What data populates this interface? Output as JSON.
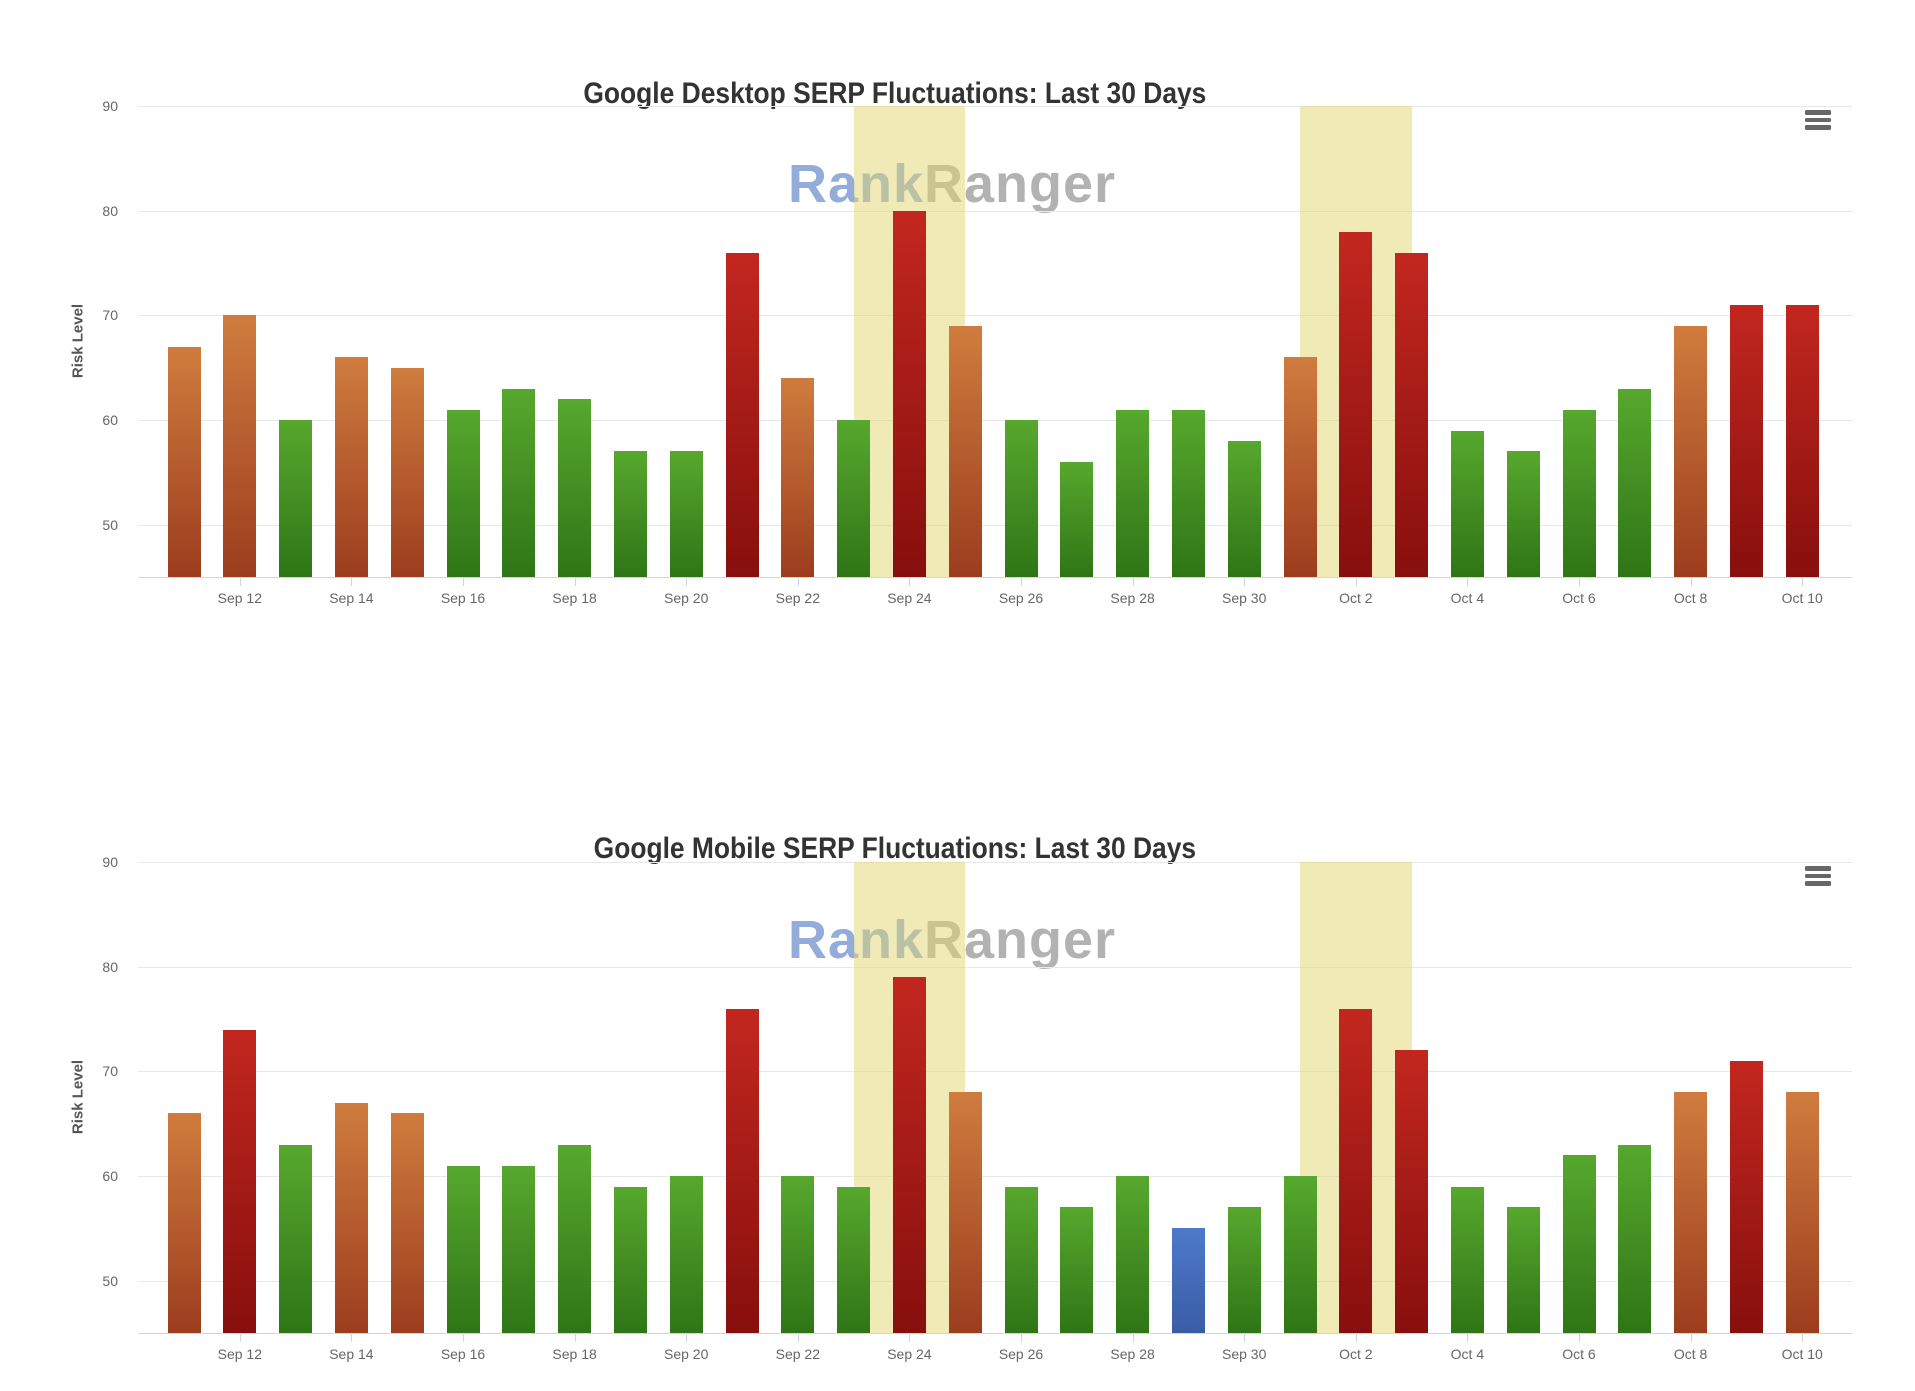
{
  "watermark": {
    "part1": "Rank",
    "part2": "Ranger"
  },
  "icons": {
    "chart_context_menu": "hamburger-icon"
  },
  "palette": {
    "low_green_top": "#57a82e",
    "low_green_bottom": "#2f7516",
    "moderate_orange_top": "#d07c3e",
    "moderate_orange_bottom": "#9c3d1e",
    "high_red_top": "#c2271f",
    "high_red_bottom": "#870f0d",
    "special_blue_top": "#4e79ca",
    "special_blue_bottom": "#3a5da6",
    "highlight_band": "#f0eab6",
    "gridline": "#e8e8e8",
    "axis": "#ccd6eb",
    "label_text": "#666666",
    "title_text": "#333333"
  },
  "chart_data": [
    {
      "type": "bar",
      "title": "Google Desktop SERP Fluctuations: Last 30 Days",
      "xlabel": "",
      "ylabel": "Risk Level",
      "ylim": [
        45,
        90
      ],
      "yticks": [
        50,
        60,
        70,
        80,
        90
      ],
      "grid": true,
      "legend": "none",
      "categories": [
        "Sep 11",
        "Sep 12",
        "Sep 13",
        "Sep 14",
        "Sep 15",
        "Sep 16",
        "Sep 17",
        "Sep 18",
        "Sep 19",
        "Sep 20",
        "Sep 21",
        "Sep 22",
        "Sep 23",
        "Sep 24",
        "Sep 25",
        "Sep 26",
        "Sep 27",
        "Sep 28",
        "Sep 29",
        "Sep 30",
        "Oct 1",
        "Oct 2",
        "Oct 3",
        "Oct 4",
        "Oct 5",
        "Oct 6",
        "Oct 7",
        "Oct 8",
        "Oct 9",
        "Oct 10"
      ],
      "x_tick_labels": [
        "Sep 12",
        "Sep 14",
        "Sep 16",
        "Sep 18",
        "Sep 20",
        "Sep 22",
        "Sep 24",
        "Sep 26",
        "Sep 28",
        "Sep 30",
        "Oct 2",
        "Oct 4",
        "Oct 6",
        "Oct 8",
        "Oct 10"
      ],
      "values": [
        67,
        70,
        60,
        66,
        65,
        61,
        63,
        62,
        57,
        57,
        76,
        64,
        60,
        80,
        69,
        60,
        56,
        61,
        61,
        58,
        66,
        78,
        76,
        59,
        57,
        61,
        63,
        69,
        71,
        71
      ],
      "levels": [
        "orange",
        "orange",
        "green",
        "orange",
        "orange",
        "green",
        "green",
        "green",
        "green",
        "green",
        "red",
        "orange",
        "green",
        "red",
        "orange",
        "green",
        "green",
        "green",
        "green",
        "green",
        "orange",
        "red",
        "red",
        "green",
        "green",
        "green",
        "green",
        "orange",
        "red",
        "red"
      ],
      "highlight_bands_x": [
        [
          "Sep 23",
          "Sep 25"
        ],
        [
          "Oct 1",
          "Oct 3"
        ]
      ]
    },
    {
      "type": "bar",
      "title": "Google Mobile SERP Fluctuations: Last 30 Days",
      "xlabel": "",
      "ylabel": "Risk Level",
      "ylim": [
        45,
        90
      ],
      "yticks": [
        50,
        60,
        70,
        80,
        90
      ],
      "grid": true,
      "legend": "none",
      "categories": [
        "Sep 11",
        "Sep 12",
        "Sep 13",
        "Sep 14",
        "Sep 15",
        "Sep 16",
        "Sep 17",
        "Sep 18",
        "Sep 19",
        "Sep 20",
        "Sep 21",
        "Sep 22",
        "Sep 23",
        "Sep 24",
        "Sep 25",
        "Sep 26",
        "Sep 27",
        "Sep 28",
        "Sep 29",
        "Sep 30",
        "Oct 1",
        "Oct 2",
        "Oct 3",
        "Oct 4",
        "Oct 5",
        "Oct 6",
        "Oct 7",
        "Oct 8",
        "Oct 9",
        "Oct 10"
      ],
      "x_tick_labels": [
        "Sep 12",
        "Sep 14",
        "Sep 16",
        "Sep 18",
        "Sep 20",
        "Sep 22",
        "Sep 24",
        "Sep 26",
        "Sep 28",
        "Sep 30",
        "Oct 2",
        "Oct 4",
        "Oct 6",
        "Oct 8",
        "Oct 10"
      ],
      "values": [
        66,
        74,
        63,
        67,
        66,
        61,
        61,
        63,
        59,
        60,
        76,
        60,
        59,
        79,
        68,
        59,
        57,
        60,
        55,
        57,
        60,
        76,
        72,
        59,
        57,
        62,
        63,
        68,
        71,
        68
      ],
      "levels": [
        "orange",
        "red",
        "green",
        "orange",
        "orange",
        "green",
        "green",
        "green",
        "green",
        "green",
        "red",
        "green",
        "green",
        "red",
        "orange",
        "green",
        "green",
        "green",
        "blue",
        "green",
        "green",
        "red",
        "red",
        "green",
        "green",
        "green",
        "green",
        "orange",
        "red",
        "orange"
      ],
      "highlight_bands_x": [
        [
          "Sep 23",
          "Sep 25"
        ],
        [
          "Oct 1",
          "Oct 3"
        ]
      ]
    }
  ]
}
